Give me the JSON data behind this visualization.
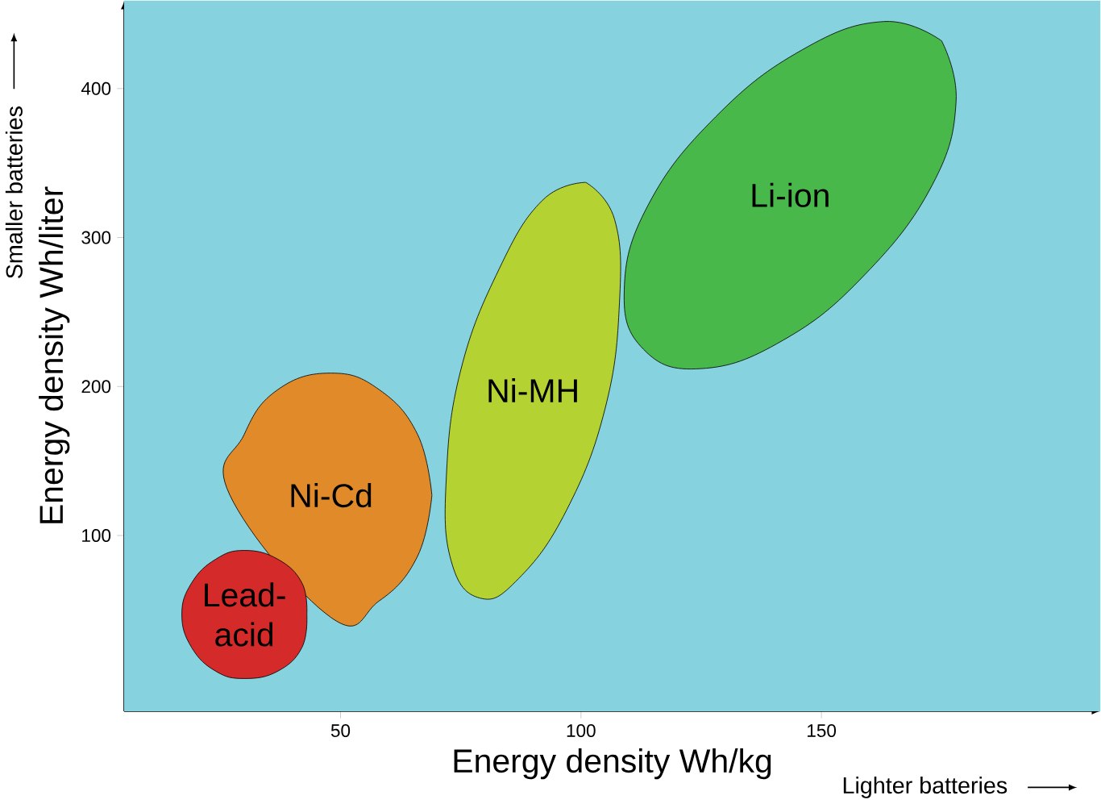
{
  "chart_data": {
    "type": "area",
    "xlabel": "Energy density Wh/kg",
    "ylabel": "Energy density Wh/liter",
    "annotations": [
      "Smaller batteries",
      "Lighter batteries"
    ],
    "xlim": [
      5,
      208
    ],
    "ylim": [
      -18,
      459
    ],
    "xticks": [
      50,
      100,
      150
    ],
    "yticks": [
      100,
      200,
      300,
      400
    ],
    "series": [
      {
        "name": "Lead-acid",
        "color": "#d42a2a",
        "x": [
          43,
          42,
          37,
          30,
          24,
          19,
          17,
          19,
          24,
          30,
          37,
          42
        ],
        "values": [
          47,
          68,
          84,
          90,
          84,
          68,
          47,
          25,
          9,
          4,
          9,
          25
        ]
      },
      {
        "name": "Ni-Cd",
        "color": "#e08a2a",
        "x": [
          69,
          66,
          58,
          48,
          37,
          30,
          27,
          30,
          37,
          48,
          58,
          66
        ],
        "values": [
          127,
          168,
          198,
          209,
          198,
          168,
          127,
          null,
          null,
          45,
          56,
          86
        ]
      },
      {
        "name": "Ni-MH",
        "color": "#b4d232",
        "x": [
          101,
          107,
          108,
          105,
          97,
          87,
          79,
          73,
          72,
          75,
          83,
          92
        ],
        "values": [
          337,
          312,
          256,
          185,
          117,
          71,
          58,
          83,
          139,
          211,
          279,
          325
        ]
      },
      {
        "name": "Li-ion",
        "color": "#48b84a",
        "x": [
          175,
          178,
          173,
          159,
          142,
          125,
          113,
          109,
          114,
          128,
          146,
          163
        ],
        "values": [
          432,
          391,
          335,
          275,
          231,
          212,
          225,
          265,
          322,
          381,
          426,
          445
        ]
      }
    ]
  }
}
